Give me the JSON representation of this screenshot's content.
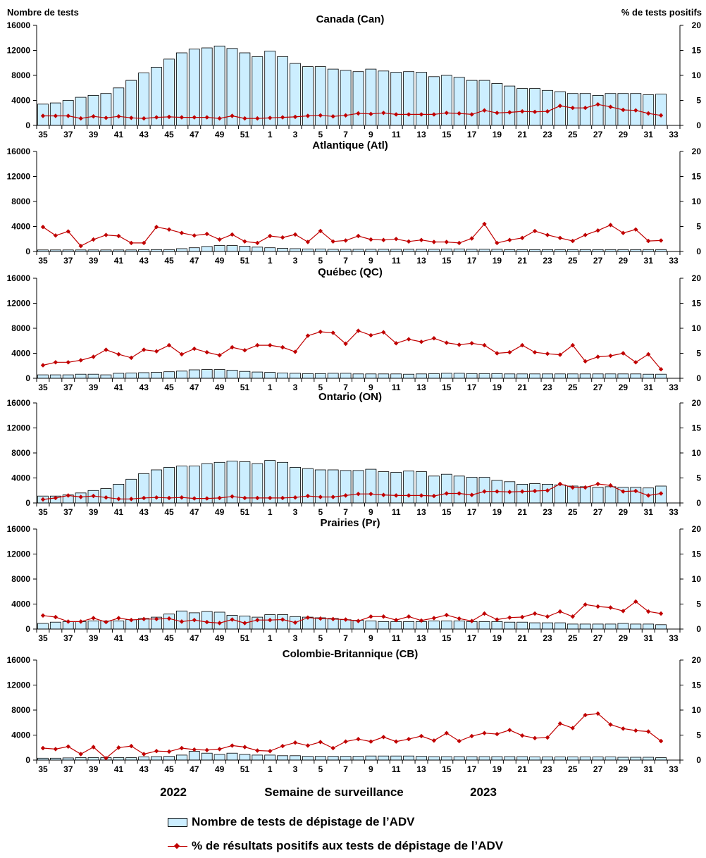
{
  "chart_data": {
    "type": "bar+line",
    "left_axis_title": "Nombre de tests",
    "right_axis_title": "% de tests positifs",
    "left_ticks": [
      "0",
      "4000",
      "8000",
      "12000",
      "16000"
    ],
    "right_ticks": [
      "0",
      "5",
      "10",
      "15",
      "20"
    ],
    "ylim_left": [
      0,
      16000
    ],
    "ylim_right": [
      0,
      20
    ],
    "weeks": [
      "35",
      "36",
      "37",
      "38",
      "39",
      "40",
      "41",
      "42",
      "43",
      "44",
      "45",
      "46",
      "47",
      "48",
      "49",
      "50",
      "51",
      "52",
      "1",
      "2",
      "3",
      "4",
      "5",
      "6",
      "7",
      "8",
      "9",
      "10",
      "11",
      "12",
      "13",
      "14",
      "15",
      "16",
      "17",
      "18",
      "19",
      "20",
      "21",
      "22",
      "23",
      "24",
      "25",
      "26",
      "27",
      "28",
      "29",
      "30",
      "31",
      "32",
      "33"
    ],
    "x_tick_labels": [
      "35",
      "37",
      "39",
      "41",
      "43",
      "45",
      "47",
      "49",
      "51",
      "1",
      "3",
      "5",
      "7",
      "9",
      "11",
      "13",
      "15",
      "17",
      "19",
      "21",
      "23",
      "25",
      "27",
      "29",
      "31",
      "33"
    ],
    "x_axis_title": "Semaine de surveillance",
    "year_labels": [
      "2022",
      "2023"
    ],
    "legend": [
      "Nombre de tests de dépistage de l’ADV",
      "% de résultats positifs aux tests de dépistage de l’ADV"
    ],
    "colors": {
      "bar_fill": "#cceeff",
      "bar_stroke": "#000000",
      "line": "#c00000"
    },
    "panels": [
      {
        "title": "Canada (Can)",
        "tests": [
          3400,
          3600,
          4000,
          4500,
          4800,
          5100,
          6000,
          7200,
          8400,
          9300,
          10600,
          11600,
          12200,
          12400,
          12700,
          12300,
          11600,
          11000,
          11900,
          11000,
          9900,
          9400,
          9400,
          9000,
          8800,
          8600,
          9000,
          8700,
          8500,
          8600,
          8500,
          7800,
          8000,
          7700,
          7200,
          7200,
          6700,
          6300,
          5900,
          5900,
          5600,
          5400,
          5100,
          5100,
          4800,
          5100,
          5100,
          5100,
          4900,
          5000,
          null
        ],
        "pct": [
          1.9,
          1.9,
          1.9,
          1.4,
          1.8,
          1.5,
          1.8,
          1.5,
          1.4,
          1.6,
          1.7,
          1.6,
          1.6,
          1.6,
          1.4,
          1.9,
          1.4,
          1.4,
          1.5,
          1.6,
          1.7,
          1.9,
          2.0,
          1.8,
          2.0,
          2.4,
          2.3,
          2.5,
          2.2,
          2.2,
          2.2,
          2.2,
          2.5,
          2.4,
          2.2,
          3.0,
          2.5,
          2.6,
          2.8,
          2.7,
          2.8,
          3.9,
          3.5,
          3.5,
          4.2,
          3.7,
          3.1,
          3.0,
          2.4,
          2.0,
          null
        ]
      },
      {
        "title": "Atlantique (Atl)",
        "tests": [
          250,
          250,
          250,
          250,
          250,
          250,
          250,
          250,
          300,
          300,
          300,
          450,
          600,
          800,
          950,
          950,
          850,
          700,
          600,
          500,
          450,
          400,
          400,
          350,
          350,
          350,
          350,
          350,
          350,
          350,
          350,
          350,
          400,
          400,
          350,
          350,
          350,
          300,
          300,
          300,
          300,
          300,
          300,
          300,
          300,
          300,
          300,
          300,
          300,
          300,
          null
        ],
        "pct": [
          4.9,
          3.2,
          4.0,
          1.1,
          2.4,
          3.3,
          3.1,
          1.7,
          1.7,
          4.9,
          4.4,
          3.7,
          3.2,
          3.5,
          2.4,
          3.4,
          2.0,
          1.7,
          3.1,
          2.8,
          3.4,
          1.9,
          4.1,
          2.0,
          2.2,
          3.1,
          2.4,
          2.3,
          2.5,
          2.0,
          2.3,
          1.9,
          1.9,
          1.7,
          2.6,
          5.5,
          1.7,
          2.3,
          2.7,
          4.1,
          3.3,
          2.7,
          2.1,
          3.3,
          4.2,
          5.3,
          3.7,
          4.4,
          2.1,
          2.2,
          null
        ]
      },
      {
        "title": "Québec (QC)",
        "tests": [
          550,
          550,
          550,
          650,
          650,
          550,
          800,
          850,
          900,
          950,
          1050,
          1150,
          1350,
          1400,
          1400,
          1300,
          1100,
          1000,
          950,
          850,
          800,
          750,
          750,
          800,
          800,
          700,
          700,
          700,
          700,
          650,
          700,
          750,
          800,
          800,
          750,
          750,
          750,
          700,
          700,
          700,
          700,
          700,
          700,
          700,
          700,
          700,
          700,
          700,
          650,
          650,
          null
        ],
        "pct": [
          2.6,
          3.2,
          3.2,
          3.6,
          4.3,
          5.7,
          4.8,
          4.1,
          5.7,
          5.4,
          6.6,
          4.8,
          5.9,
          5.2,
          4.6,
          6.2,
          5.6,
          6.6,
          6.6,
          6.2,
          5.3,
          8.5,
          9.3,
          9.1,
          6.9,
          9.5,
          8.6,
          9.2,
          7.0,
          7.8,
          7.3,
          8.0,
          7.1,
          6.7,
          7.0,
          6.6,
          5.0,
          5.2,
          6.6,
          5.2,
          4.9,
          4.7,
          6.6,
          3.4,
          4.3,
          4.5,
          5.0,
          3.2,
          4.8,
          1.8,
          null
        ]
      },
      {
        "title": "Ontario (ON)",
        "tests": [
          1100,
          1100,
          1300,
          1600,
          2000,
          2300,
          3000,
          3800,
          4700,
          5300,
          5700,
          5900,
          5900,
          6300,
          6500,
          6700,
          6600,
          6300,
          6800,
          6500,
          5700,
          5500,
          5300,
          5300,
          5200,
          5200,
          5400,
          5000,
          4900,
          5100,
          5000,
          4300,
          4600,
          4300,
          4100,
          4100,
          3600,
          3400,
          3000,
          3100,
          3000,
          2900,
          2700,
          2600,
          2500,
          2600,
          2500,
          2500,
          2400,
          2700,
          null
        ],
        "pct": [
          0.7,
          1.0,
          1.5,
          1.2,
          1.4,
          1.1,
          0.8,
          0.8,
          1.0,
          1.1,
          1.0,
          1.1,
          0.9,
          0.9,
          1.0,
          1.3,
          1.0,
          1.0,
          1.0,
          1.0,
          1.1,
          1.4,
          1.2,
          1.2,
          1.5,
          1.8,
          1.8,
          1.6,
          1.5,
          1.5,
          1.5,
          1.4,
          1.9,
          1.9,
          1.6,
          2.3,
          2.3,
          2.2,
          2.3,
          2.4,
          2.5,
          3.8,
          3.1,
          3.1,
          3.8,
          3.5,
          2.3,
          2.4,
          1.5,
          1.9,
          null
        ]
      },
      {
        "title": "Prairies (Pr)",
        "tests": [
          900,
          1100,
          1200,
          1200,
          1300,
          1300,
          1300,
          1500,
          1700,
          1900,
          2400,
          2900,
          2600,
          2800,
          2700,
          2200,
          2100,
          1900,
          2300,
          2300,
          2000,
          1900,
          1800,
          1700,
          1500,
          1400,
          1300,
          1200,
          1200,
          1200,
          1200,
          1300,
          1300,
          1300,
          1200,
          1200,
          1200,
          1100,
          1100,
          1000,
          1000,
          1000,
          800,
          800,
          800,
          800,
          900,
          800,
          800,
          700,
          null
        ],
        "pct": [
          2.7,
          2.4,
          1.5,
          1.5,
          2.2,
          1.4,
          2.2,
          1.8,
          2.0,
          2.0,
          2.1,
          1.5,
          1.8,
          1.4,
          1.2,
          1.9,
          1.2,
          1.8,
          1.8,
          1.9,
          1.3,
          2.3,
          2.1,
          2.0,
          1.9,
          1.6,
          2.5,
          2.5,
          1.8,
          2.5,
          1.7,
          2.2,
          2.8,
          2.1,
          1.6,
          3.1,
          1.9,
          2.3,
          2.4,
          3.1,
          2.5,
          3.5,
          2.5,
          4.9,
          4.5,
          4.3,
          3.6,
          5.5,
          3.5,
          3.1,
          null
        ]
      },
      {
        "title": "Colombie-Britannique (CB)",
        "tests": [
          300,
          300,
          350,
          400,
          400,
          400,
          400,
          400,
          500,
          550,
          600,
          800,
          1400,
          1100,
          900,
          1100,
          900,
          800,
          800,
          700,
          700,
          600,
          600,
          600,
          600,
          600,
          650,
          650,
          650,
          650,
          600,
          550,
          550,
          550,
          550,
          550,
          550,
          550,
          550,
          500,
          500,
          500,
          500,
          500,
          500,
          500,
          450,
          450,
          450,
          400,
          null
        ],
        "pct": [
          2.4,
          2.2,
          2.7,
          1.2,
          2.6,
          0.4,
          2.5,
          2.8,
          1.2,
          1.8,
          1.7,
          2.4,
          2.1,
          2.0,
          2.2,
          2.9,
          2.6,
          1.9,
          1.8,
          2.8,
          3.5,
          2.9,
          3.6,
          2.4,
          3.7,
          4.2,
          3.7,
          4.6,
          3.7,
          4.2,
          4.8,
          3.9,
          5.4,
          3.8,
          4.8,
          5.4,
          5.2,
          6.0,
          4.9,
          4.4,
          4.5,
          7.3,
          6.4,
          9.0,
          9.3,
          7.1,
          6.3,
          5.9,
          5.7,
          3.8,
          null
        ]
      }
    ]
  }
}
